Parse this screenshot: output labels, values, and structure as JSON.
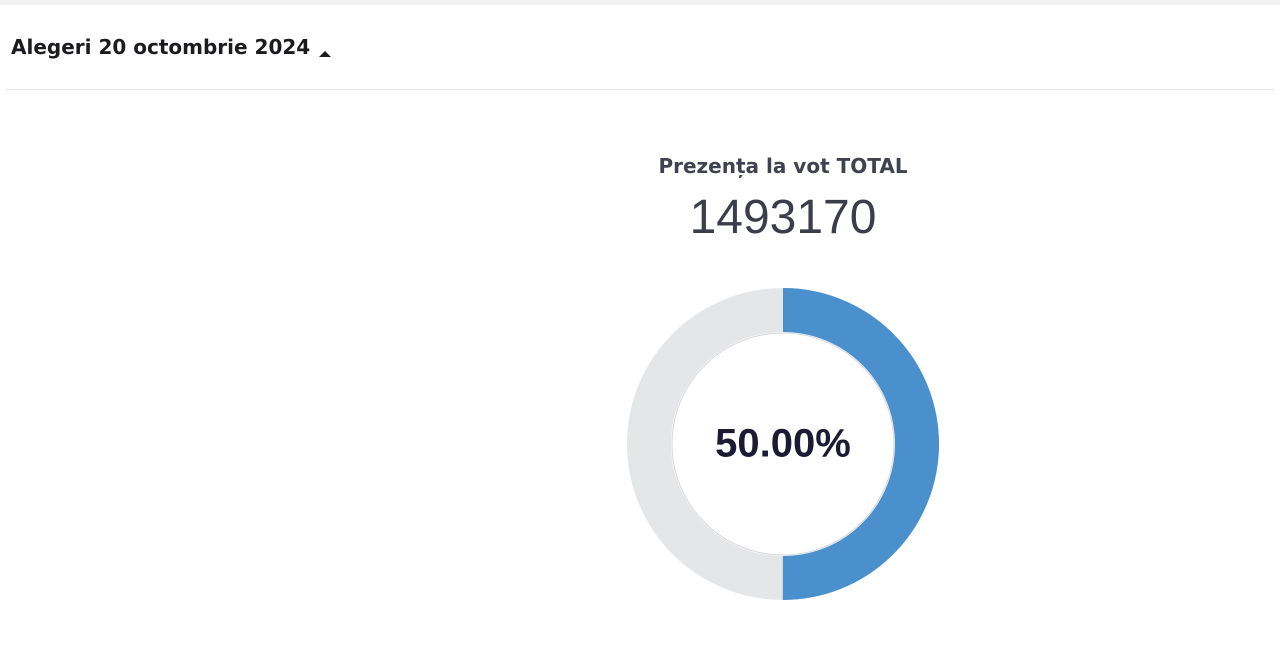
{
  "header": {
    "title": "Alegeri 20 octombrie 2024"
  },
  "turnout": {
    "label": "Prezența la vot TOTAL",
    "total": 1493170,
    "gauge": {
      "range": [
        0,
        100
      ],
      "value": 50,
      "value_label": "50.00%",
      "color": "#4a90cd",
      "track_color": "#e5e6e8"
    }
  }
}
